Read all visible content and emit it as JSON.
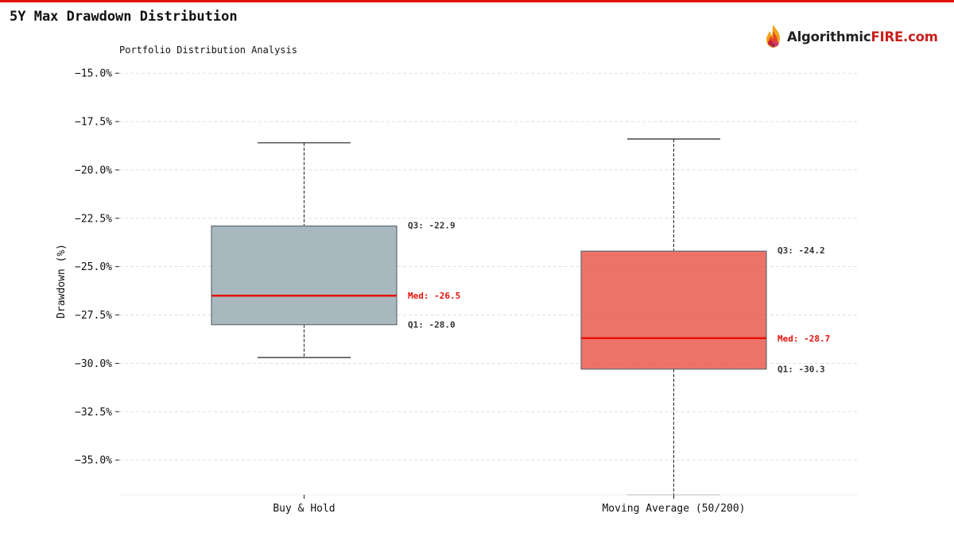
{
  "page": {
    "title": "5Y Max Drawdown Distribution",
    "logo": {
      "brand": "Algorithmic",
      "brand_accent": "FIRE.com",
      "icon": "flame-logo-icon"
    }
  },
  "colors": {
    "accent": "#e3120b",
    "median": "#e3120b"
  },
  "chart_data": {
    "type": "box",
    "subtitle": "Portfolio Distribution Analysis",
    "ylabel": "Drawdown (%)",
    "xlabel": "",
    "ylim": [
      -36.8,
      -14.6
    ],
    "yticks": [
      -15.0,
      -17.5,
      -20.0,
      -22.5,
      -25.0,
      -27.5,
      -30.0,
      -32.5,
      -35.0
    ],
    "ytick_labels": [
      "−15.0%",
      "−17.5%",
      "−20.0%",
      "−22.5%",
      "−25.0%",
      "−27.5%",
      "−30.0%",
      "−32.5%",
      "−35.0%"
    ],
    "grid": true,
    "categories": [
      "Buy & Hold",
      "Moving Average (50/200)"
    ],
    "series": [
      {
        "category": "Buy & Hold",
        "whisker_high": -18.6,
        "q3": -22.9,
        "median": -26.5,
        "q1": -28.0,
        "whisker_low": -29.7,
        "color": "#9aabb3",
        "q3_label": "Q3: -22.9",
        "median_label": "Med: -26.5",
        "q1_label": "Q1: -28.0"
      },
      {
        "category": "Moving Average (50/200)",
        "whisker_high": -18.4,
        "q3": -24.2,
        "median": -28.7,
        "q1": -30.3,
        "whisker_low": -36.8,
        "color": "#ea5a4f",
        "q3_label": "Q3: -24.2",
        "median_label": "Med: -28.7",
        "q1_label": "Q1: -30.3"
      }
    ]
  }
}
